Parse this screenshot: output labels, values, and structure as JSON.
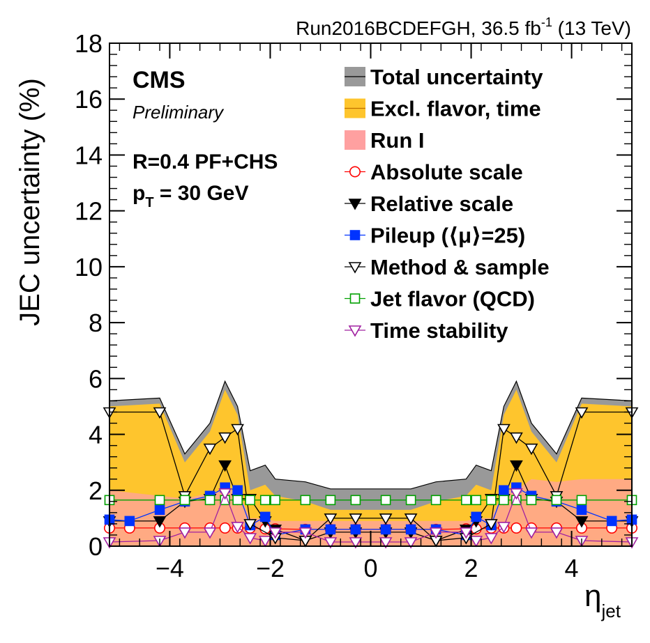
{
  "chart_data": {
    "type": "area",
    "header": {
      "run": "Run2016BCDEFGH, 36.5 fb",
      "run_sup": "-1",
      "energy": " (13 TeV)"
    },
    "labels": {
      "experiment": "CMS",
      "status": "Preliminary",
      "algo": "R=0.4 PF+CHS",
      "pt_p": "p",
      "pt_sub": "T",
      "pt_value": " = 30 GeV"
    },
    "xlabel": "η",
    "xlabel_sub": "jet",
    "ylabel": "JEC uncertainty (%)",
    "xlim": [
      -5.2,
      5.2
    ],
    "ylim": [
      0,
      18
    ],
    "xticks": [
      -4,
      -2,
      0,
      2,
      4
    ],
    "xtick_labels": [
      "−4",
      "−2",
      "0",
      "2",
      "4"
    ],
    "yticks": [
      0,
      2,
      4,
      6,
      8,
      10,
      12,
      14,
      16,
      18
    ],
    "ytick_labels": [
      "0",
      "2",
      "4",
      "6",
      "8",
      "10",
      "12",
      "14",
      "16",
      "18"
    ],
    "legend": [
      {
        "key": "total",
        "label": "Total uncertainty"
      },
      {
        "key": "excl",
        "label": "Excl. flavor, time"
      },
      {
        "key": "run1",
        "label": "Run I"
      },
      {
        "key": "abs",
        "label": "Absolute scale"
      },
      {
        "key": "rel",
        "label": "Relative scale"
      },
      {
        "key": "pu",
        "label": "Pileup (⟨μ⟩=25)"
      },
      {
        "key": "meth",
        "label": "Method & sample"
      },
      {
        "key": "flav",
        "label": "Jet flavor (QCD)"
      },
      {
        "key": "time",
        "label": "Time stability"
      }
    ],
    "colors": {
      "total": "#999999",
      "excl": "#fec52d",
      "run1": "#ffa0a0",
      "abs": "#ff0000",
      "rel": "#000000",
      "pu": "#0033ff",
      "meth": "#000000",
      "flav": "#00a000",
      "time": "#a020a0"
    },
    "bands": {
      "x": [
        -5.2,
        -4.2,
        -3.7,
        -3.2,
        -2.9,
        -2.65,
        -2.4,
        -2.1,
        -1.9,
        -1.3,
        -0.8,
        0.8,
        1.3,
        1.9,
        2.1,
        2.4,
        2.65,
        2.9,
        3.2,
        3.7,
        4.2,
        5.2
      ],
      "total": [
        5.2,
        5.3,
        3.3,
        4.4,
        5.9,
        5.0,
        2.7,
        2.9,
        2.4,
        2.3,
        2.05,
        2.05,
        2.3,
        2.4,
        2.9,
        2.7,
        5.0,
        5.9,
        4.4,
        3.3,
        5.3,
        5.2
      ],
      "excl": [
        5.0,
        5.1,
        3.0,
        4.1,
        5.6,
        4.7,
        2.0,
        2.2,
        1.8,
        1.6,
        1.3,
        1.3,
        1.6,
        1.8,
        2.2,
        2.0,
        4.7,
        5.6,
        4.1,
        3.0,
        5.1,
        5.0
      ],
      "run1": [
        2.0,
        1.8,
        1.7,
        1.9,
        2.0,
        2.0,
        1.0,
        1.0,
        0.9,
        0.9,
        0.9,
        0.9,
        0.9,
        0.9,
        1.0,
        1.0,
        2.0,
        2.0,
        2.4,
        2.3,
        2.4,
        2.4
      ]
    },
    "series": [
      {
        "key": "abs",
        "name": "Absolute scale",
        "x": [
          -5.2,
          -4.8,
          -4.2,
          -3.7,
          -3.2,
          -2.9,
          -2.65,
          -2.4,
          -2.1,
          -1.9,
          -1.3,
          -0.8,
          -0.3,
          0.3,
          0.8,
          1.3,
          1.9,
          2.1,
          2.4,
          2.65,
          2.9,
          3.2,
          3.7,
          4.2,
          4.8,
          5.2
        ],
        "y": [
          0.65,
          0.65,
          0.65,
          0.65,
          0.65,
          0.65,
          0.65,
          0.65,
          0.62,
          0.62,
          0.6,
          0.6,
          0.6,
          0.6,
          0.6,
          0.6,
          0.62,
          0.62,
          0.65,
          0.65,
          0.65,
          0.65,
          0.65,
          0.65,
          0.65,
          0.65
        ]
      },
      {
        "key": "rel",
        "name": "Relative scale",
        "x": [
          -5.2,
          -4.2,
          -3.7,
          -3.2,
          -2.9,
          -2.65,
          -2.4,
          -2.1,
          -1.9,
          -1.3,
          -0.8,
          -0.3,
          0.3,
          0.8,
          1.3,
          1.9,
          2.1,
          2.4,
          2.65,
          2.9,
          3.2,
          3.7,
          4.2,
          5.2
        ],
        "y": [
          0.9,
          0.9,
          1.6,
          1.7,
          2.9,
          1.7,
          1.7,
          0.9,
          0.6,
          0.2,
          0.5,
          0.5,
          0.5,
          0.5,
          0.2,
          0.6,
          0.9,
          1.7,
          1.7,
          2.9,
          1.7,
          1.6,
          0.9,
          0.9
        ]
      },
      {
        "key": "pu",
        "name": "Pileup (⟨μ⟩=25)",
        "x": [
          -5.2,
          -4.8,
          -4.2,
          -3.7,
          -3.2,
          -2.9,
          -2.65,
          -2.4,
          -2.1,
          -1.9,
          -1.3,
          -0.8,
          -0.3,
          0.3,
          0.8,
          1.3,
          1.9,
          2.1,
          2.4,
          2.65,
          2.9,
          3.2,
          3.7,
          4.2,
          4.8,
          5.2
        ],
        "y": [
          0.95,
          0.9,
          1.3,
          1.6,
          1.8,
          2.1,
          2.0,
          0.75,
          1.05,
          0.4,
          0.6,
          0.6,
          0.6,
          0.6,
          0.6,
          0.6,
          0.4,
          1.05,
          0.75,
          2.0,
          2.1,
          1.8,
          1.6,
          1.3,
          0.9,
          0.95
        ]
      },
      {
        "key": "meth",
        "name": "Method & sample",
        "x": [
          -5.2,
          -4.2,
          -3.7,
          -3.2,
          -2.9,
          -2.65,
          -2.4,
          -1.9,
          -1.3,
          -0.8,
          -0.3,
          0.3,
          0.8,
          1.3,
          1.9,
          2.4,
          2.65,
          2.9,
          3.2,
          3.7,
          4.2,
          5.2
        ],
        "y": [
          4.8,
          4.8,
          1.8,
          3.5,
          3.9,
          4.2,
          0.8,
          0.3,
          0.2,
          1.0,
          1.0,
          1.0,
          1.0,
          0.2,
          0.3,
          0.8,
          4.2,
          3.9,
          3.5,
          1.8,
          4.8,
          4.8
        ]
      },
      {
        "key": "flav",
        "name": "Jet flavor (QCD)",
        "x": [
          -5.2,
          -4.2,
          -3.7,
          -3.2,
          -2.9,
          -2.65,
          -2.4,
          -2.1,
          -1.9,
          -1.3,
          -0.8,
          -0.3,
          0.3,
          0.8,
          1.3,
          1.9,
          2.1,
          2.4,
          2.65,
          2.9,
          3.2,
          3.7,
          4.2,
          5.2
        ],
        "y": [
          1.65,
          1.65,
          1.65,
          1.65,
          1.65,
          1.65,
          1.65,
          1.65,
          1.65,
          1.65,
          1.65,
          1.65,
          1.65,
          1.65,
          1.65,
          1.65,
          1.65,
          1.65,
          1.65,
          1.65,
          1.65,
          1.65,
          1.65,
          1.65
        ]
      },
      {
        "key": "time",
        "name": "Time stability",
        "x": [
          -5.2,
          -4.2,
          -3.7,
          -3.2,
          -2.9,
          -2.65,
          -2.4,
          -2.1,
          -1.9,
          -1.3,
          -0.8,
          -0.3,
          0.3,
          0.8,
          1.3,
          1.9,
          2.1,
          2.4,
          2.65,
          2.9,
          3.2,
          3.7,
          4.2,
          5.2
        ],
        "y": [
          0.15,
          0.2,
          0.5,
          0.5,
          1.9,
          0.7,
          0.3,
          0.2,
          0.5,
          0.5,
          0.15,
          0.15,
          0.15,
          0.15,
          0.5,
          0.5,
          0.2,
          0.3,
          0.7,
          1.9,
          0.5,
          0.5,
          0.2,
          0.15
        ]
      }
    ]
  }
}
